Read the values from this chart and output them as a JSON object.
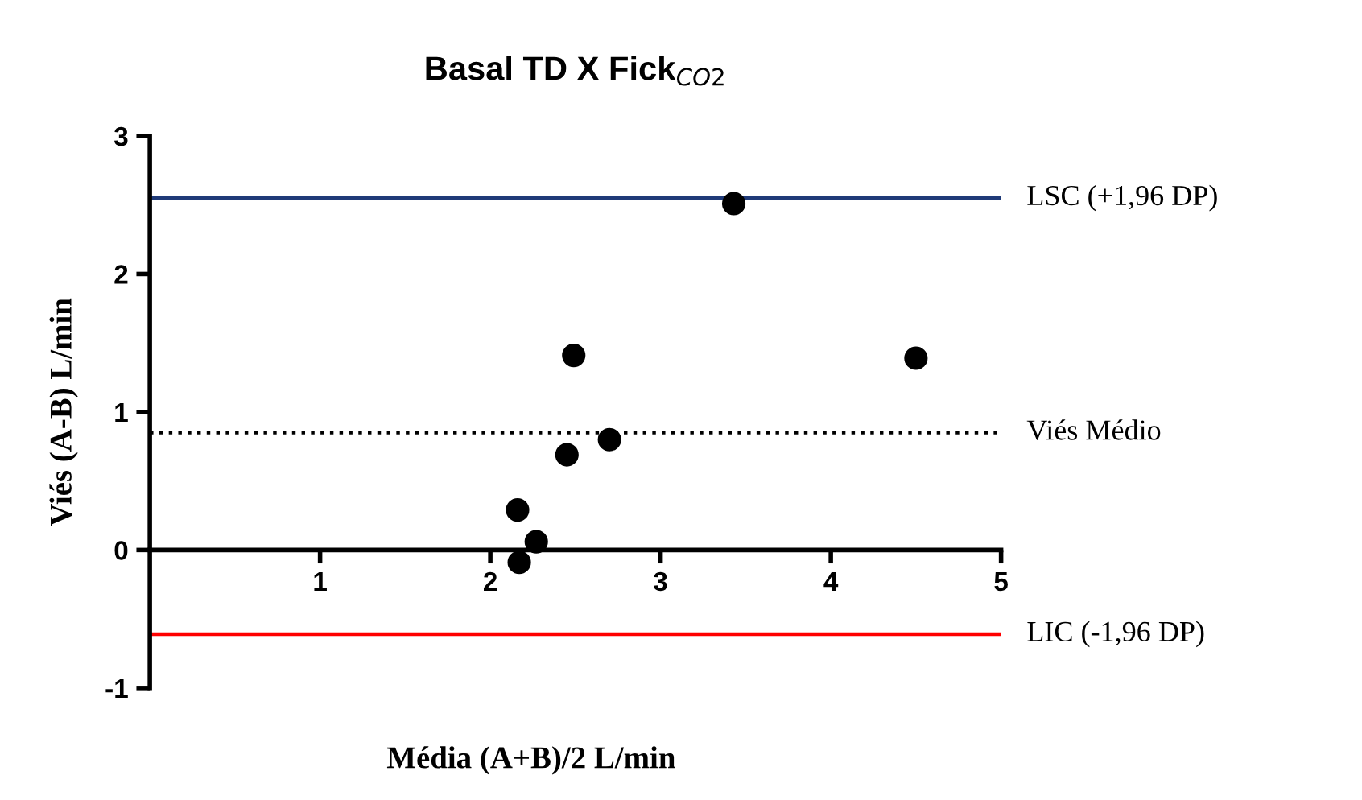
{
  "chart_data": {
    "type": "scatter",
    "title": "Basal TD X Fick$_{CO2}$",
    "xlabel": "Média (A+B)/2 L/min",
    "ylabel": "Viés (A-B) L/min",
    "x": [
      3.43,
      2.49,
      4.5,
      2.7,
      2.45,
      2.16,
      2.27,
      2.17
    ],
    "values": [
      2.51,
      1.41,
      1.39,
      0.8,
      0.69,
      0.29,
      0.06,
      -0.09
    ],
    "color": "#000000",
    "marker": "circle",
    "xlim": [
      0,
      5
    ],
    "xticks": [
      1,
      2,
      3,
      4,
      5
    ],
    "ylim": [
      -1,
      3
    ],
    "yticks": [
      -1,
      0,
      1,
      2,
      3
    ],
    "grid": false,
    "ref_lines": [
      {
        "axis": "y",
        "value": 2.55,
        "label": "LSC (+1,96 DP)",
        "color": "#1f3a78",
        "line_style": "solid"
      },
      {
        "axis": "y",
        "value": 0.85,
        "label": "Viés Médio",
        "color": "#000000",
        "line_style": "dotted"
      },
      {
        "axis": "y",
        "value": -0.61,
        "label": "LIC (-1,96 DP)",
        "color": "#ff0000",
        "line_style": "solid"
      }
    ]
  }
}
